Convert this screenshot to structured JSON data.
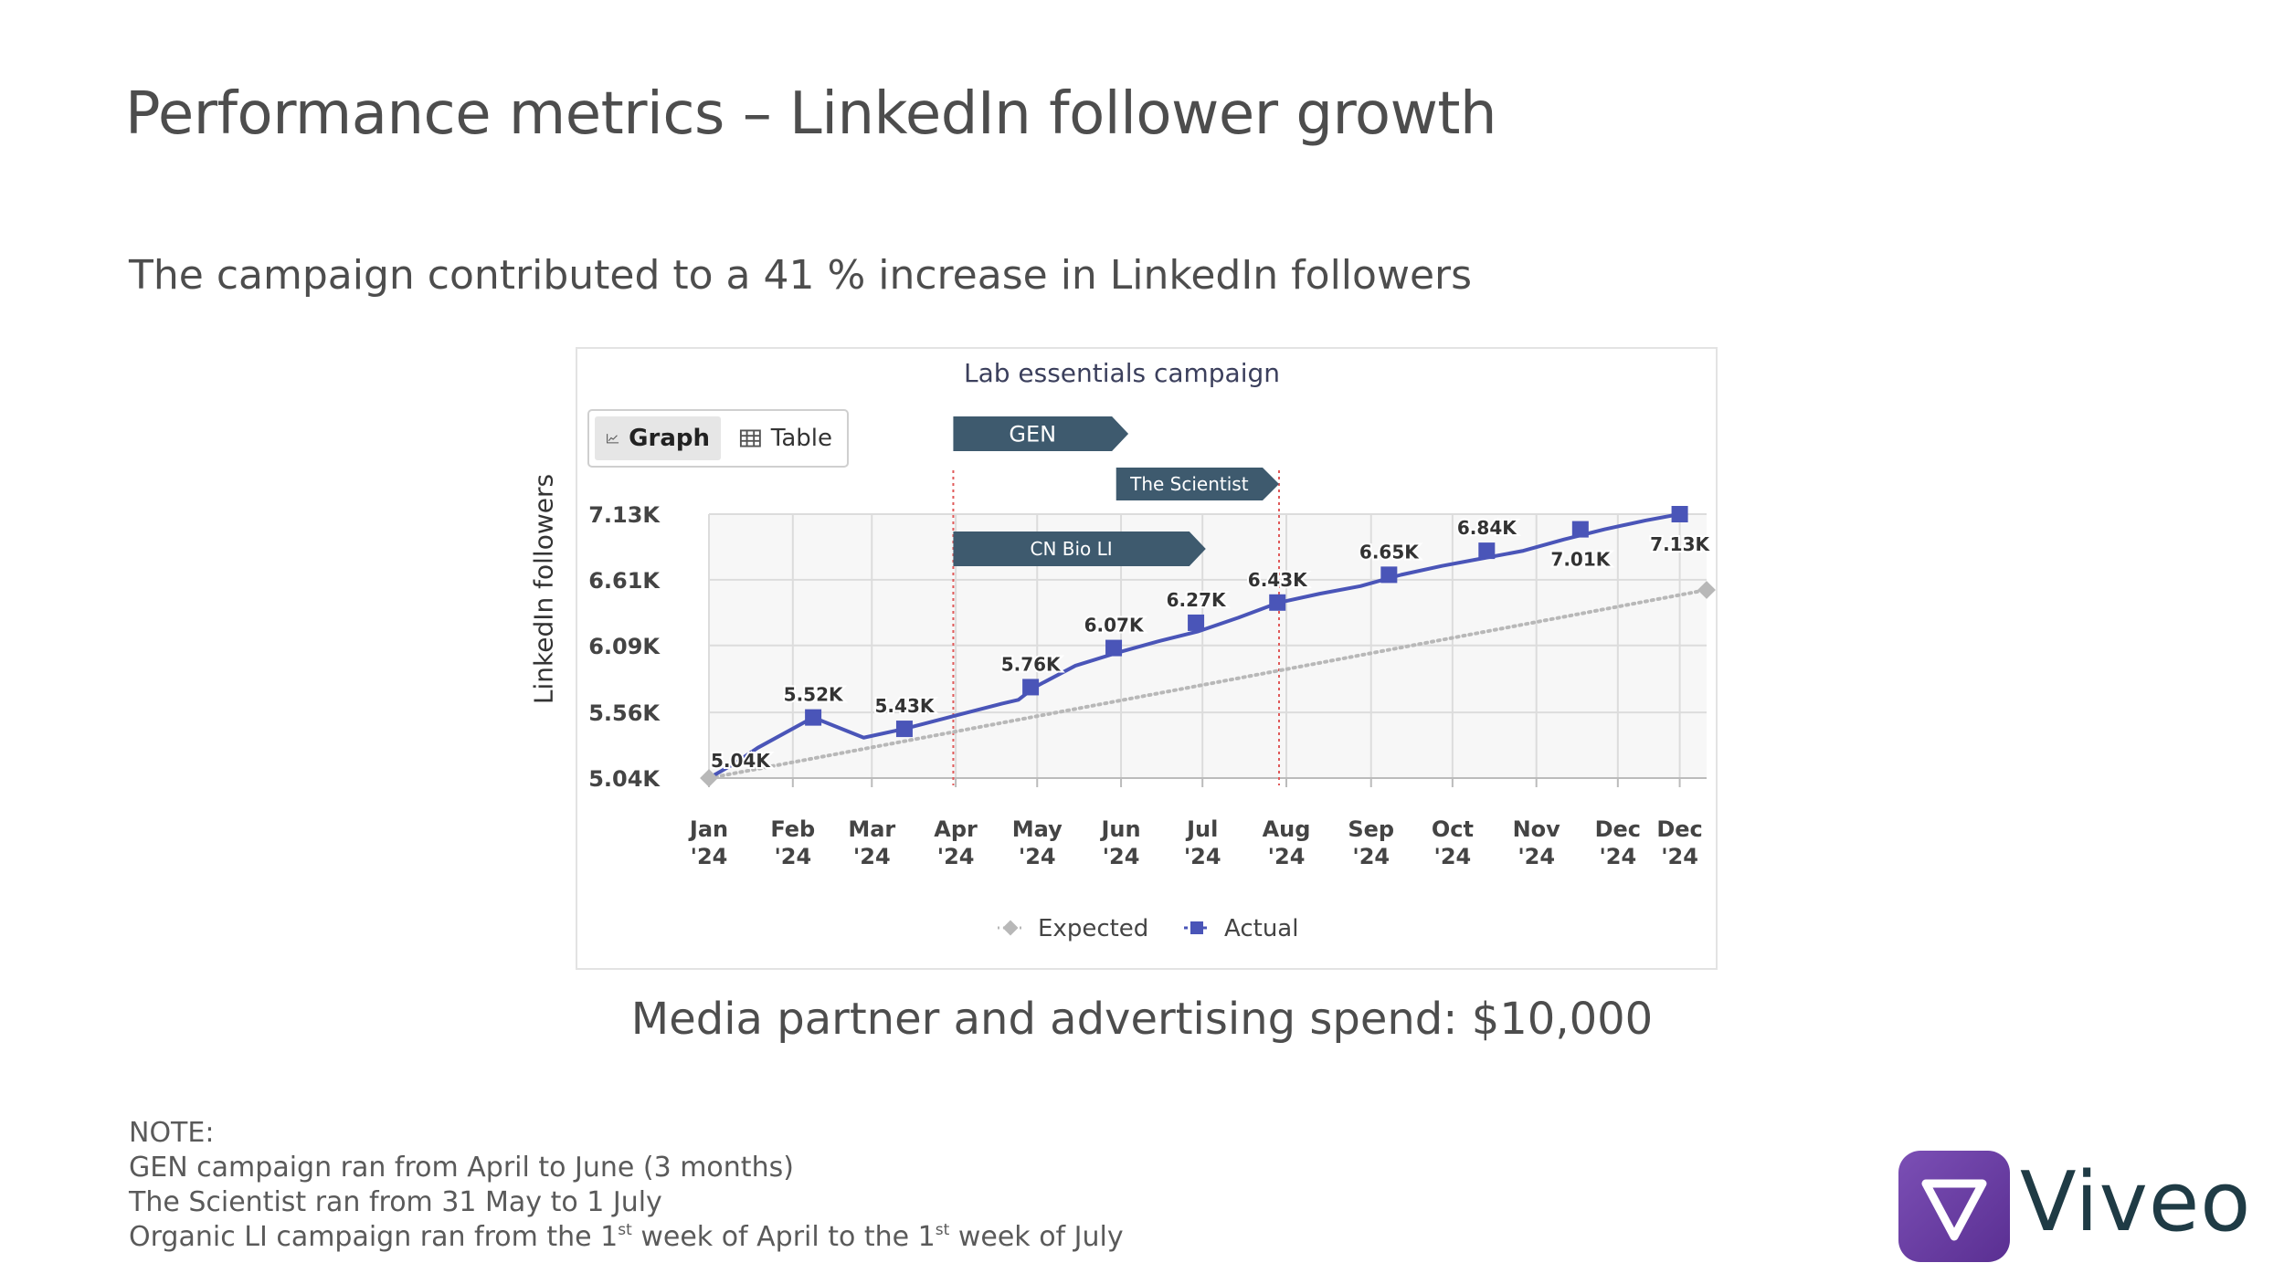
{
  "slide": {
    "title": "Performance metrics – LinkedIn follower growth",
    "subtitle": "The campaign contributed to a 41 % increase in LinkedIn followers",
    "spend": "Media partner and advertising spend: $10,000"
  },
  "toggle": {
    "graph_label": "Graph",
    "table_label": "Table"
  },
  "notes": {
    "heading": "NOTE:",
    "line1": "GEN campaign ran from April to June (3 months)",
    "line2": "The Scientist ran from 31 May  to 1 July",
    "line3_a": "Organic LI campaign ran from the 1",
    "line3_sup1": "st",
    "line3_b": " week of April to the 1",
    "line3_sup2": "st",
    "line3_c": " week of July"
  },
  "logo": {
    "text": "Viveo"
  },
  "colors": {
    "actual": "#4a55b8",
    "expected": "#b8b8b8",
    "banner": "#3e5a6e",
    "campaign_line": "#e05a5a",
    "logo_purple": "#6b3fa0"
  },
  "chart_data": {
    "type": "line",
    "title": "Lab essentials campaign",
    "xlabel": "",
    "ylabel": "LinkedIn followers",
    "ylim": [
      5.04,
      7.13
    ],
    "y_ticks": [
      5.04,
      5.56,
      6.09,
      6.61,
      7.13
    ],
    "y_tick_labels": [
      "5.04K",
      "5.56K",
      "6.09K",
      "6.61K",
      "7.13K"
    ],
    "x_range": [
      0,
      12.25
    ],
    "x_ticks": [
      {
        "x": 0,
        "label": "Jan",
        "label2": "'24"
      },
      {
        "x": 1.03,
        "label": "Feb",
        "label2": "'24"
      },
      {
        "x": 2.0,
        "label": "Mar",
        "label2": "'24"
      },
      {
        "x": 3.03,
        "label": "Apr",
        "label2": "'24"
      },
      {
        "x": 4.03,
        "label": "May",
        "label2": "'24"
      },
      {
        "x": 5.06,
        "label": "Jun",
        "label2": "'24"
      },
      {
        "x": 6.06,
        "label": "Jul",
        "label2": "'24"
      },
      {
        "x": 7.09,
        "label": "Aug",
        "label2": "'24"
      },
      {
        "x": 8.13,
        "label": "Sep",
        "label2": "'24"
      },
      {
        "x": 9.13,
        "label": "Oct",
        "label2": "'24"
      },
      {
        "x": 10.16,
        "label": "Nov",
        "label2": "'24"
      },
      {
        "x": 11.16,
        "label": "Dec",
        "label2": "'24"
      },
      {
        "x": 11.92,
        "label": "Dec",
        "label2": "'24"
      }
    ],
    "series": [
      {
        "name": "Expected",
        "style": "dotted",
        "points": [
          [
            0,
            5.04
          ],
          [
            12.25,
            6.53
          ]
        ],
        "markers": [
          [
            0,
            5.04
          ],
          [
            12.25,
            6.53
          ]
        ]
      },
      {
        "name": "Actual",
        "style": "solid",
        "points": [
          [
            0,
            5.04
          ],
          [
            0.3,
            5.15
          ],
          [
            0.6,
            5.28
          ],
          [
            1.28,
            5.52
          ],
          [
            1.9,
            5.36
          ],
          [
            2.4,
            5.43
          ],
          [
            3.0,
            5.53
          ],
          [
            3.6,
            5.63
          ],
          [
            3.8,
            5.66
          ],
          [
            4.0,
            5.76
          ],
          [
            4.5,
            5.93
          ],
          [
            5.0,
            6.03
          ],
          [
            5.5,
            6.12
          ],
          [
            6.0,
            6.2
          ],
          [
            6.5,
            6.31
          ],
          [
            7.0,
            6.43
          ],
          [
            7.5,
            6.5
          ],
          [
            8.0,
            6.56
          ],
          [
            8.5,
            6.65
          ],
          [
            9.0,
            6.72
          ],
          [
            9.5,
            6.78
          ],
          [
            10.0,
            6.84
          ],
          [
            10.5,
            6.93
          ],
          [
            11.0,
            7.01
          ],
          [
            11.5,
            7.08
          ],
          [
            11.92,
            7.13
          ]
        ],
        "markers": [
          [
            1.28,
            5.52
          ],
          [
            2.4,
            5.43
          ],
          [
            3.95,
            5.76
          ],
          [
            4.97,
            6.07
          ],
          [
            5.98,
            6.27
          ],
          [
            6.98,
            6.43
          ],
          [
            8.35,
            6.65
          ],
          [
            9.55,
            6.84
          ],
          [
            10.7,
            7.01
          ],
          [
            11.92,
            7.13
          ]
        ]
      }
    ],
    "data_labels": [
      {
        "x": 0,
        "y": 5.04,
        "text": "5.04K",
        "pos": "right-above"
      },
      {
        "x": 1.28,
        "y": 5.52,
        "text": "5.52K",
        "pos": "above"
      },
      {
        "x": 2.4,
        "y": 5.43,
        "text": "5.43K",
        "pos": "above"
      },
      {
        "x": 3.95,
        "y": 5.76,
        "text": "5.76K",
        "pos": "above"
      },
      {
        "x": 4.97,
        "y": 6.07,
        "text": "6.07K",
        "pos": "above"
      },
      {
        "x": 5.98,
        "y": 6.27,
        "text": "6.27K",
        "pos": "above"
      },
      {
        "x": 6.98,
        "y": 6.43,
        "text": "6.43K",
        "pos": "above"
      },
      {
        "x": 8.35,
        "y": 6.65,
        "text": "6.65K",
        "pos": "above"
      },
      {
        "x": 9.55,
        "y": 6.84,
        "text": "6.84K",
        "pos": "above"
      },
      {
        "x": 10.7,
        "y": 7.01,
        "text": "7.01K",
        "pos": "below"
      },
      {
        "x": 11.92,
        "y": 7.13,
        "text": "7.13K",
        "pos": "below"
      }
    ],
    "campaign_lines": [
      3.0,
      7.0
    ],
    "banners": [
      {
        "label": "GEN",
        "x_start": 3.0,
        "x_end": 5.15,
        "row": 0
      },
      {
        "label": "The Scientist",
        "x_start": 5.0,
        "x_end": 7.0,
        "row": 1
      },
      {
        "label": "CN Bio LI",
        "x_start": 3.0,
        "x_end": 6.1,
        "row": 2
      }
    ],
    "legend": {
      "position": "bottom-center",
      "items": [
        {
          "name": "Expected",
          "marker": "diamond"
        },
        {
          "name": "Actual",
          "marker": "square"
        }
      ]
    },
    "grid": true
  }
}
